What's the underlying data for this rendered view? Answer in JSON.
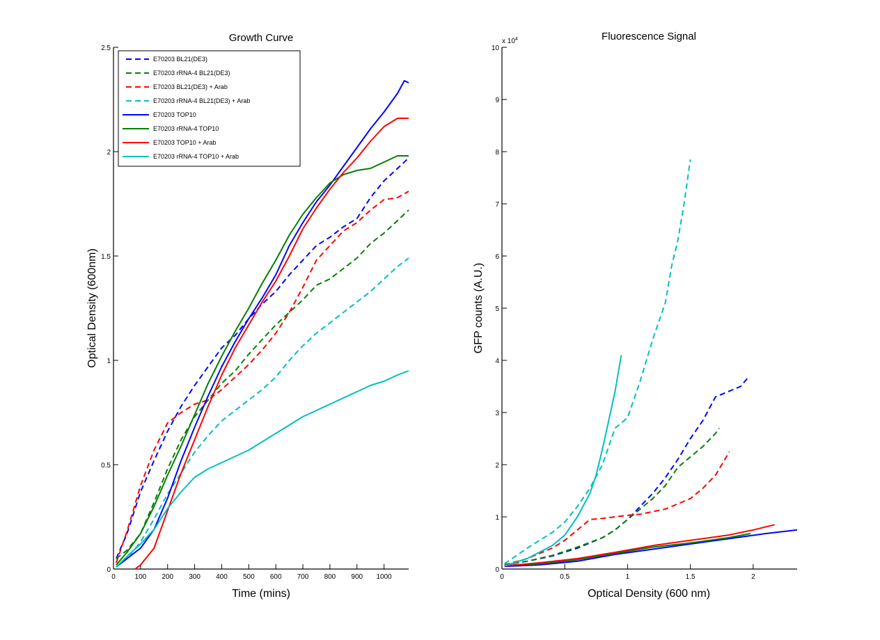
{
  "chart_data": [
    {
      "type": "line",
      "title": "Growth Curve",
      "xlabel": "Time (mins)",
      "ylabel": "Optical Density (600nm)",
      "xlim": [
        0,
        1091
      ],
      "ylim": [
        0,
        2.5
      ],
      "xticks": [
        0,
        100,
        200,
        300,
        400,
        500,
        600,
        700,
        800,
        900,
        1000
      ],
      "yticks": [
        0,
        0.5,
        1,
        1.5,
        2,
        2.5
      ],
      "xtick_labels": [
        "0",
        "100",
        "200",
        "300",
        "400",
        "500",
        "600",
        "700",
        "800",
        "900",
        "1000"
      ],
      "ytick_labels": [
        "0",
        "0.5",
        "1",
        "1.5",
        "2",
        "2.5"
      ],
      "grid": false,
      "legend_position": "top-left",
      "series": [
        {
          "name": "E70203 BL21(DE3)",
          "color": "#0000ff",
          "style": "dashed",
          "x": [
            10,
            50,
            100,
            150,
            200,
            250,
            300,
            350,
            400,
            450,
            500,
            550,
            600,
            650,
            700,
            750,
            800,
            850,
            900,
            950,
            1000,
            1050,
            1091
          ],
          "y": [
            0.05,
            0.17,
            0.37,
            0.52,
            0.66,
            0.78,
            0.88,
            0.97,
            1.06,
            1.12,
            1.2,
            1.27,
            1.33,
            1.41,
            1.48,
            1.55,
            1.59,
            1.64,
            1.68,
            1.78,
            1.86,
            1.92,
            1.97
          ]
        },
        {
          "name": "E70203 rRNA-4 BL21(DE3)",
          "color": "#008000",
          "style": "dashed",
          "x": [
            10,
            50,
            100,
            150,
            200,
            250,
            300,
            350,
            400,
            450,
            500,
            550,
            600,
            650,
            700,
            750,
            800,
            850,
            900,
            950,
            1000,
            1050,
            1091
          ],
          "y": [
            0.05,
            0.09,
            0.17,
            0.32,
            0.48,
            0.62,
            0.73,
            0.81,
            0.89,
            0.95,
            1.03,
            1.1,
            1.17,
            1.23,
            1.29,
            1.36,
            1.39,
            1.44,
            1.49,
            1.56,
            1.61,
            1.67,
            1.72
          ]
        },
        {
          "name": "E70203 BL21(DE3) + Arab",
          "color": "#ff0000",
          "style": "dashed",
          "x": [
            10,
            50,
            100,
            150,
            200,
            250,
            300,
            350,
            400,
            450,
            500,
            550,
            600,
            650,
            700,
            750,
            800,
            850,
            900,
            950,
            1000,
            1050,
            1091
          ],
          "y": [
            0.03,
            0.18,
            0.4,
            0.57,
            0.7,
            0.75,
            0.79,
            0.81,
            0.86,
            0.92,
            0.98,
            1.05,
            1.13,
            1.23,
            1.35,
            1.48,
            1.55,
            1.62,
            1.66,
            1.72,
            1.77,
            1.78,
            1.81
          ]
        },
        {
          "name": "E70203 rRNA-4 BL21(DE3) + Arab",
          "color": "#00bfbf",
          "style": "dashed",
          "x": [
            10,
            50,
            100,
            150,
            200,
            250,
            300,
            350,
            400,
            450,
            500,
            550,
            600,
            650,
            700,
            750,
            800,
            850,
            900,
            950,
            1000,
            1050,
            1091
          ],
          "y": [
            0.01,
            0.05,
            0.13,
            0.24,
            0.36,
            0.46,
            0.56,
            0.64,
            0.71,
            0.76,
            0.81,
            0.86,
            0.92,
            1.0,
            1.07,
            1.13,
            1.18,
            1.23,
            1.28,
            1.33,
            1.39,
            1.45,
            1.49
          ]
        },
        {
          "name": "E70203 TOP10",
          "color": "#0000ff",
          "style": "solid",
          "x": [
            10,
            50,
            100,
            150,
            200,
            250,
            300,
            350,
            400,
            450,
            500,
            550,
            600,
            650,
            700,
            750,
            800,
            850,
            900,
            950,
            1000,
            1050,
            1075,
            1091
          ],
          "y": [
            0.01,
            0.05,
            0.1,
            0.19,
            0.34,
            0.52,
            0.68,
            0.83,
            0.97,
            1.09,
            1.2,
            1.3,
            1.41,
            1.55,
            1.66,
            1.76,
            1.84,
            1.93,
            2.02,
            2.11,
            2.19,
            2.28,
            2.34,
            2.33
          ]
        },
        {
          "name": "E70203 rRNA-4 TOP10",
          "color": "#008000",
          "style": "solid",
          "x": [
            10,
            50,
            100,
            150,
            200,
            250,
            300,
            350,
            400,
            450,
            500,
            550,
            600,
            650,
            700,
            750,
            800,
            850,
            900,
            950,
            1000,
            1050,
            1091
          ],
          "y": [
            0.02,
            0.08,
            0.17,
            0.3,
            0.45,
            0.59,
            0.74,
            0.89,
            1.02,
            1.14,
            1.25,
            1.37,
            1.48,
            1.6,
            1.7,
            1.78,
            1.85,
            1.89,
            1.91,
            1.92,
            1.95,
            1.98,
            1.98
          ]
        },
        {
          "name": "E70203 TOP10 + Arab",
          "color": "#ff0000",
          "style": "solid",
          "x": [
            80,
            100,
            150,
            200,
            250,
            300,
            350,
            400,
            450,
            500,
            550,
            600,
            650,
            700,
            750,
            800,
            850,
            900,
            950,
            1000,
            1050,
            1091
          ],
          "y": [
            0.0,
            0.02,
            0.1,
            0.28,
            0.46,
            0.62,
            0.78,
            0.93,
            1.06,
            1.17,
            1.28,
            1.38,
            1.5,
            1.63,
            1.73,
            1.82,
            1.9,
            1.97,
            2.05,
            2.12,
            2.16,
            2.16
          ]
        },
        {
          "name": "E70203 rRNA-4 TOP10 + Arab",
          "color": "#00bfbf",
          "style": "solid",
          "x": [
            10,
            50,
            100,
            150,
            200,
            250,
            300,
            350,
            400,
            450,
            500,
            550,
            600,
            650,
            700,
            750,
            800,
            850,
            900,
            950,
            1000,
            1050,
            1091
          ],
          "y": [
            0.01,
            0.06,
            0.12,
            0.19,
            0.29,
            0.37,
            0.44,
            0.48,
            0.51,
            0.54,
            0.57,
            0.61,
            0.65,
            0.69,
            0.73,
            0.76,
            0.79,
            0.82,
            0.85,
            0.88,
            0.9,
            0.93,
            0.95
          ]
        }
      ]
    },
    {
      "type": "line",
      "title": "Fluorescence Signal",
      "xlabel": "Optical Density (600 nm)",
      "ylabel": "GFP counts (A.U.)",
      "y_multiplier": "x 10^4",
      "xlim": [
        0,
        2.35
      ],
      "ylim": [
        0,
        10
      ],
      "xticks": [
        0,
        0.5,
        1,
        1.5,
        2
      ],
      "yticks": [
        0,
        1,
        2,
        3,
        4,
        5,
        6,
        7,
        8,
        9,
        10
      ],
      "xtick_labels": [
        "0",
        "0.5",
        "1",
        "1.5",
        "2"
      ],
      "ytick_labels": [
        "0",
        "1",
        "2",
        "3",
        "4",
        "5",
        "6",
        "7",
        "8",
        "9",
        "10"
      ],
      "grid": false,
      "series": [
        {
          "name": "E70203 BL21(DE3)",
          "color": "#0000ff",
          "style": "dashed",
          "x": [
            0.02,
            0.2,
            0.4,
            0.6,
            0.8,
            0.9,
            1.0,
            1.1,
            1.2,
            1.3,
            1.4,
            1.5,
            1.6,
            1.7,
            1.8,
            1.9,
            1.97
          ],
          "y": [
            0.08,
            0.15,
            0.25,
            0.4,
            0.6,
            0.75,
            0.95,
            1.2,
            1.45,
            1.75,
            2.1,
            2.5,
            2.85,
            3.3,
            3.4,
            3.5,
            3.7
          ]
        },
        {
          "name": "E70203 rRNA-4 BL21(DE3)",
          "color": "#008000",
          "style": "dashed",
          "x": [
            0.02,
            0.2,
            0.4,
            0.6,
            0.8,
            0.9,
            1.0,
            1.1,
            1.2,
            1.3,
            1.4,
            1.5,
            1.6,
            1.7,
            1.73
          ],
          "y": [
            0.08,
            0.15,
            0.26,
            0.42,
            0.6,
            0.75,
            0.95,
            1.15,
            1.35,
            1.6,
            1.95,
            2.15,
            2.35,
            2.6,
            2.7
          ]
        },
        {
          "name": "E70203 BL21(DE3) + Arab",
          "color": "#ff0000",
          "style": "dashed",
          "x": [
            0.02,
            0.2,
            0.4,
            0.5,
            0.6,
            0.7,
            0.8,
            0.9,
            1.0,
            1.1,
            1.2,
            1.3,
            1.4,
            1.5,
            1.6,
            1.7,
            1.75,
            1.81
          ],
          "y": [
            0.08,
            0.2,
            0.4,
            0.55,
            0.75,
            0.95,
            0.97,
            1.0,
            1.03,
            1.05,
            1.1,
            1.15,
            1.25,
            1.35,
            1.55,
            1.8,
            2.0,
            2.25
          ]
        },
        {
          "name": "E70203 rRNA-4 BL21(DE3) + Arab",
          "color": "#00bfbf",
          "style": "dashed",
          "x": [
            0.02,
            0.2,
            0.4,
            0.5,
            0.6,
            0.7,
            0.8,
            0.9,
            1.0,
            1.1,
            1.2,
            1.3,
            1.35,
            1.4,
            1.45,
            1.5
          ],
          "y": [
            0.1,
            0.4,
            0.7,
            0.9,
            1.2,
            1.55,
            2.0,
            2.7,
            2.9,
            3.6,
            4.4,
            5.1,
            5.8,
            6.3,
            7.0,
            7.85
          ]
        },
        {
          "name": "E70203 TOP10",
          "color": "#0000ff",
          "style": "solid",
          "x": [
            0.02,
            0.3,
            0.6,
            0.9,
            1.2,
            1.5,
            1.8,
            2.1,
            2.35
          ],
          "y": [
            0.05,
            0.08,
            0.15,
            0.28,
            0.38,
            0.48,
            0.58,
            0.68,
            0.75
          ]
        },
        {
          "name": "E70203 rRNA-4 TOP10",
          "color": "#008000",
          "style": "solid",
          "x": [
            0.02,
            0.3,
            0.6,
            0.9,
            1.2,
            1.5,
            1.8,
            1.98
          ],
          "y": [
            0.07,
            0.1,
            0.18,
            0.3,
            0.42,
            0.5,
            0.6,
            0.68
          ]
        },
        {
          "name": "E70203 TOP10 + Arab",
          "color": "#ff0000",
          "style": "solid",
          "x": [
            0.02,
            0.3,
            0.6,
            0.9,
            1.2,
            1.5,
            1.8,
            2.0,
            2.17
          ],
          "y": [
            0.06,
            0.12,
            0.2,
            0.32,
            0.45,
            0.55,
            0.65,
            0.75,
            0.85
          ]
        },
        {
          "name": "E70203 rRNA-4 TOP10 + Arab",
          "color": "#00bfbf",
          "style": "solid",
          "x": [
            0.02,
            0.2,
            0.4,
            0.5,
            0.6,
            0.7,
            0.75,
            0.8,
            0.85,
            0.9,
            0.95
          ],
          "y": [
            0.06,
            0.2,
            0.45,
            0.65,
            1.0,
            1.45,
            1.8,
            2.3,
            2.85,
            3.4,
            4.1
          ]
        }
      ]
    }
  ]
}
